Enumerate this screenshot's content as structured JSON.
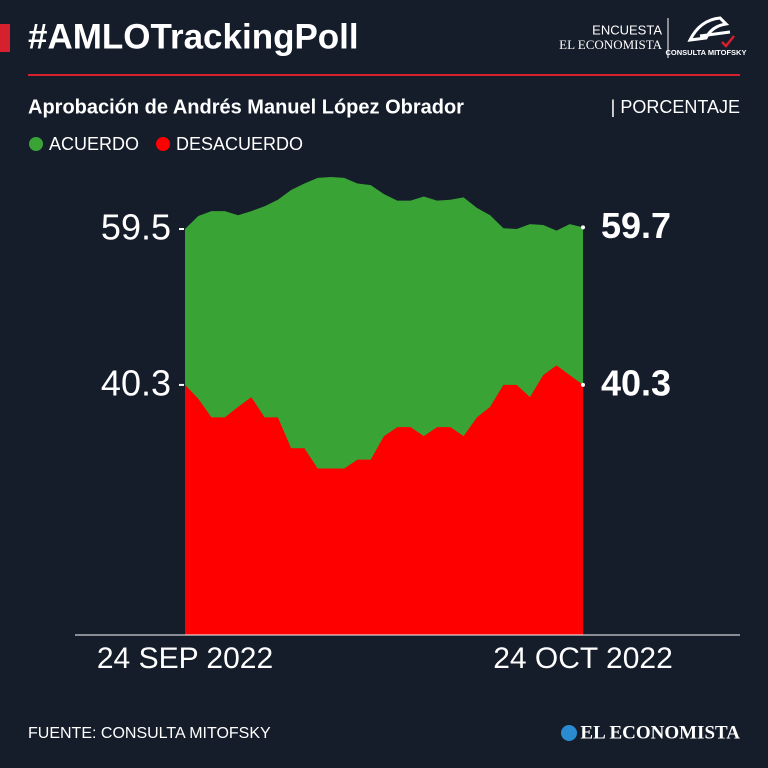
{
  "header": {
    "title": "#AMLOTrackingPoll",
    "logo_top": "ENCUESTA",
    "logo_bottom": "EL ECONOMISTA",
    "logo_badge": "CONSULTA MITOFSKY"
  },
  "chart_data": {
    "type": "area",
    "subtitle": "Aprobación de Andrés Manuel López Obrador",
    "unit": "| PORCENTAJE",
    "categories": [
      "24 SEP 2022",
      null,
      null,
      null,
      null,
      null,
      null,
      null,
      null,
      null,
      null,
      null,
      null,
      null,
      null,
      null,
      null,
      null,
      null,
      null,
      null,
      null,
      null,
      null,
      null,
      null,
      null,
      null,
      null,
      null,
      "24 OCT 2022"
    ],
    "series": [
      {
        "name": "ACUERDO",
        "color": "#3aa335",
        "values": [
          59.5,
          61.1,
          61.7,
          61.7,
          61.2,
          61.7,
          62.3,
          63.1,
          64.3,
          65.1,
          65.8,
          65.9,
          65.8,
          65.1,
          64.9,
          63.8,
          63.0,
          63.0,
          63.5,
          63.0,
          63.1,
          63.4,
          62.1,
          61.2,
          59.6,
          59.5,
          60.1,
          60.0,
          59.3,
          60.1,
          59.7
        ]
      },
      {
        "name": "DESACUERDO",
        "color": "#fe0000",
        "values": [
          40.3,
          38.6,
          36.3,
          36.3,
          37.6,
          38.8,
          36.3,
          36.3,
          32.5,
          32.5,
          30.0,
          30.0,
          30.0,
          31.1,
          31.1,
          34.0,
          35.1,
          35.1,
          34.0,
          35.1,
          35.1,
          34.0,
          36.3,
          37.6,
          40.3,
          40.3,
          38.8,
          41.5,
          42.7,
          41.5,
          40.3
        ]
      }
    ],
    "ylim": [
      9.5,
      68
    ],
    "yticks": [
      40.3,
      59.5
    ],
    "grid": false,
    "source": "FUENTE: CONSULTA MITOFSKY",
    "footer_brand": "EL ECONOMISTA"
  }
}
